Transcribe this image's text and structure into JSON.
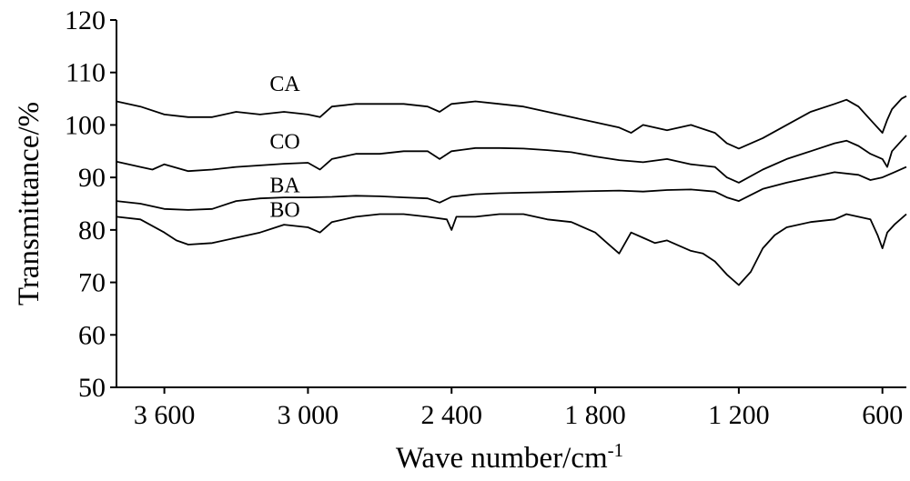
{
  "chart_data": {
    "type": "line",
    "xlabel": "Wave number/cm",
    "xlabel_superscript": "-1",
    "ylabel": "Transmittance/%",
    "xlim": [
      3800,
      500
    ],
    "ylim": [
      50,
      120
    ],
    "x_reversed": true,
    "grid": false,
    "legend": "none",
    "x_ticks": [
      3600,
      3000,
      2400,
      1800,
      1200,
      600
    ],
    "x_tick_labels": [
      "3 600",
      "3 000",
      "2 400",
      "1 800",
      "1 200",
      "600"
    ],
    "y_ticks": [
      50,
      60,
      70,
      80,
      90,
      100,
      110,
      120
    ],
    "y_tick_labels": [
      "50",
      "60",
      "70",
      "80",
      "90",
      "100",
      "110",
      "120"
    ],
    "line_color": "#000000",
    "series": [
      {
        "name": "CA",
        "label_at": [
          3160,
          106.5
        ],
        "x": [
          3800,
          3700,
          3600,
          3500,
          3400,
          3300,
          3200,
          3100,
          3000,
          2950,
          2900,
          2800,
          2700,
          2600,
          2500,
          2450,
          2400,
          2300,
          2200,
          2100,
          2000,
          1900,
          1800,
          1700,
          1650,
          1600,
          1500,
          1400,
          1300,
          1250,
          1200,
          1100,
          1000,
          900,
          800,
          750,
          700,
          650,
          600,
          580,
          560,
          520,
          500
        ],
        "y": [
          104.5,
          103.5,
          102,
          101.5,
          101.5,
          102.5,
          102,
          102.5,
          102,
          101.5,
          103.5,
          104,
          104,
          104,
          103.5,
          102.5,
          104,
          104.5,
          104,
          103.5,
          102.5,
          101.5,
          100.5,
          99.5,
          98.5,
          100,
          99,
          100,
          98.5,
          96.5,
          95.5,
          97.5,
          100,
          102.5,
          104,
          104.8,
          103.5,
          101,
          98.5,
          101,
          103,
          105,
          105.5
        ]
      },
      {
        "name": "CO",
        "label_at": [
          3160,
          95.5
        ],
        "x": [
          3800,
          3700,
          3650,
          3600,
          3500,
          3400,
          3300,
          3200,
          3100,
          3000,
          2950,
          2900,
          2800,
          2700,
          2600,
          2500,
          2450,
          2400,
          2300,
          2200,
          2100,
          2000,
          1900,
          1800,
          1700,
          1600,
          1500,
          1400,
          1300,
          1250,
          1200,
          1100,
          1000,
          900,
          800,
          750,
          700,
          650,
          600,
          580,
          560,
          520,
          500
        ],
        "y": [
          93,
          92,
          91.5,
          92.5,
          91.2,
          91.5,
          92,
          92.3,
          92.6,
          92.8,
          91.5,
          93.5,
          94.5,
          94.5,
          95,
          95,
          93.5,
          95,
          95.6,
          95.6,
          95.5,
          95.2,
          94.8,
          94,
          93.3,
          92.9,
          93.5,
          92.5,
          92,
          90,
          89,
          91.5,
          93.5,
          95,
          96.5,
          97,
          96,
          94.5,
          93.5,
          92,
          95,
          97,
          98
        ]
      },
      {
        "name": "BA",
        "label_at": [
          3160,
          87.2
        ],
        "x": [
          3800,
          3700,
          3600,
          3500,
          3400,
          3300,
          3200,
          3100,
          3000,
          2900,
          2800,
          2700,
          2600,
          2500,
          2450,
          2400,
          2300,
          2200,
          2100,
          2000,
          1900,
          1800,
          1700,
          1600,
          1500,
          1400,
          1300,
          1250,
          1200,
          1100,
          1000,
          900,
          800,
          700,
          650,
          600,
          550,
          500
        ],
        "y": [
          85.5,
          85,
          84,
          83.8,
          84,
          85.5,
          86,
          86.2,
          86.2,
          86.3,
          86.5,
          86.4,
          86.2,
          86,
          85.2,
          86.3,
          86.8,
          87,
          87.1,
          87.2,
          87.3,
          87.4,
          87.5,
          87.3,
          87.6,
          87.7,
          87.3,
          86.2,
          85.5,
          87.8,
          89,
          90,
          91,
          90.5,
          89.5,
          90,
          91,
          92
        ]
      },
      {
        "name": "BO",
        "label_at": [
          3160,
          82.5
        ],
        "x": [
          3800,
          3700,
          3600,
          3550,
          3500,
          3400,
          3300,
          3200,
          3100,
          3000,
          2950,
          2900,
          2800,
          2700,
          2600,
          2500,
          2420,
          2400,
          2380,
          2300,
          2200,
          2100,
          2000,
          1900,
          1800,
          1750,
          1700,
          1650,
          1600,
          1550,
          1500,
          1450,
          1400,
          1350,
          1300,
          1250,
          1200,
          1150,
          1100,
          1050,
          1000,
          900,
          800,
          750,
          700,
          650,
          620,
          600,
          580,
          550,
          500
        ],
        "y": [
          82.5,
          82,
          79.5,
          78,
          77.2,
          77.5,
          78.5,
          79.5,
          81,
          80.5,
          79.5,
          81.5,
          82.5,
          83,
          83,
          82.5,
          82,
          80,
          82.5,
          82.5,
          83,
          83,
          82,
          81.5,
          79.5,
          77.5,
          75.5,
          79.5,
          78.5,
          77.5,
          78,
          77,
          76,
          75.5,
          74,
          71.5,
          69.5,
          72,
          76.5,
          79,
          80.5,
          81.5,
          82,
          83,
          82.5,
          82,
          79,
          76.5,
          79.5,
          81,
          83
        ]
      }
    ]
  }
}
